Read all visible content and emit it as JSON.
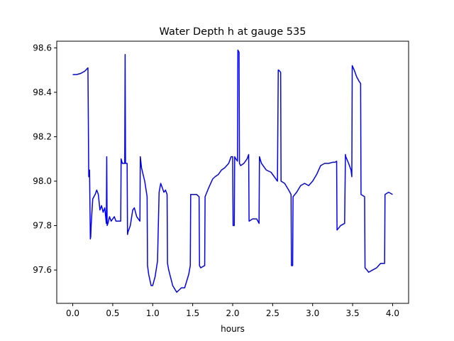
{
  "chart_data": {
    "type": "line",
    "title": "Water Depth h at gauge 535",
    "xlabel": "hours",
    "ylabel": "",
    "xlim": [
      -0.2,
      4.2
    ],
    "ylim": [
      97.45,
      98.63
    ],
    "grid": false,
    "xticks": [
      0.0,
      0.5,
      1.0,
      1.5,
      2.0,
      2.5,
      3.0,
      3.5,
      4.0
    ],
    "xtick_labels": [
      "0.0",
      "0.5",
      "1.0",
      "1.5",
      "2.0",
      "2.5",
      "3.0",
      "3.5",
      "4.0"
    ],
    "yticks": [
      97.6,
      97.8,
      98.0,
      98.2,
      98.4,
      98.6
    ],
    "ytick_labels": [
      "97.6",
      "97.8",
      "98.0",
      "98.2",
      "98.4",
      "98.6"
    ],
    "series": [
      {
        "name": "",
        "color": "#0000ff",
        "x": [
          0.0,
          0.05,
          0.1,
          0.15,
          0.19,
          0.2,
          0.21,
          0.22,
          0.225,
          0.23,
          0.25,
          0.28,
          0.3,
          0.32,
          0.34,
          0.36,
          0.38,
          0.4,
          0.42,
          0.425,
          0.43,
          0.44,
          0.46,
          0.48,
          0.5,
          0.52,
          0.54,
          0.56,
          0.58,
          0.6,
          0.605,
          0.62,
          0.65,
          0.655,
          0.66,
          0.67,
          0.68,
          0.685,
          0.69,
          0.72,
          0.75,
          0.77,
          0.8,
          0.82,
          0.84,
          0.845,
          0.86,
          0.9,
          0.93,
          0.935,
          0.95,
          0.98,
          1.0,
          1.03,
          1.06,
          1.08,
          1.1,
          1.12,
          1.14,
          1.16,
          1.18,
          1.185,
          1.2,
          1.25,
          1.3,
          1.33,
          1.36,
          1.4,
          1.45,
          1.47,
          1.475,
          1.5,
          1.55,
          1.58,
          1.585,
          1.6,
          1.65,
          1.655,
          1.7,
          1.75,
          1.78,
          1.82,
          1.86,
          1.9,
          1.95,
          1.98,
          2.0,
          2.005,
          2.02,
          2.025,
          2.04,
          2.06,
          2.065,
          2.08,
          2.085,
          2.1,
          2.14,
          2.18,
          2.2,
          2.205,
          2.25,
          2.3,
          2.33,
          2.335,
          2.36,
          2.42,
          2.48,
          2.52,
          2.56,
          2.57,
          2.575,
          2.6,
          2.605,
          2.65,
          2.7,
          2.73,
          2.735,
          2.75,
          2.755,
          2.8,
          2.85,
          2.9,
          2.95,
          3.0,
          3.05,
          3.1,
          3.15,
          3.2,
          3.25,
          3.28,
          3.3,
          3.305,
          3.35,
          3.4,
          3.41,
          3.415,
          3.45,
          3.48,
          3.49,
          3.495,
          3.52,
          3.55,
          3.58,
          3.6,
          3.605,
          3.65,
          3.655,
          3.68,
          3.7,
          3.75,
          3.8,
          3.85,
          3.9,
          3.905,
          3.95,
          4.0
        ],
        "y": [
          98.48,
          98.48,
          98.485,
          98.495,
          98.51,
          98.02,
          98.05,
          97.74,
          97.75,
          97.8,
          97.92,
          97.94,
          97.96,
          97.94,
          97.87,
          97.89,
          97.86,
          97.88,
          97.81,
          98.11,
          97.8,
          97.81,
          97.84,
          97.82,
          97.83,
          97.84,
          97.82,
          97.82,
          97.82,
          97.82,
          98.1,
          98.08,
          98.08,
          98.57,
          98.08,
          98.08,
          98.08,
          97.76,
          97.77,
          97.8,
          97.87,
          97.88,
          97.84,
          97.83,
          97.82,
          98.11,
          98.06,
          98.0,
          97.93,
          97.62,
          97.58,
          97.53,
          97.53,
          97.57,
          97.64,
          97.95,
          97.99,
          97.97,
          97.95,
          97.96,
          97.94,
          97.63,
          97.6,
          97.53,
          97.5,
          97.51,
          97.52,
          97.52,
          97.58,
          97.62,
          97.94,
          97.94,
          97.94,
          97.93,
          97.62,
          97.61,
          97.62,
          97.93,
          97.97,
          98.01,
          98.02,
          98.03,
          98.05,
          98.06,
          98.08,
          98.11,
          98.11,
          97.8,
          97.8,
          98.11,
          98.1,
          98.09,
          98.59,
          98.58,
          98.08,
          98.07,
          98.08,
          98.1,
          98.12,
          97.82,
          97.83,
          97.83,
          97.81,
          98.11,
          98.08,
          98.05,
          98.04,
          98.02,
          98.0,
          98.5,
          98.5,
          98.49,
          98.0,
          97.99,
          97.96,
          97.94,
          97.62,
          97.62,
          97.93,
          97.95,
          97.98,
          97.99,
          97.98,
          98.0,
          98.03,
          98.07,
          98.08,
          98.08,
          98.085,
          98.085,
          98.09,
          97.78,
          97.8,
          97.81,
          98.12,
          98.11,
          98.08,
          98.05,
          98.02,
          98.52,
          98.5,
          98.47,
          98.45,
          98.44,
          97.94,
          97.93,
          97.61,
          97.6,
          97.59,
          97.6,
          97.61,
          97.63,
          97.63,
          97.94,
          97.95,
          97.94
        ]
      }
    ]
  }
}
